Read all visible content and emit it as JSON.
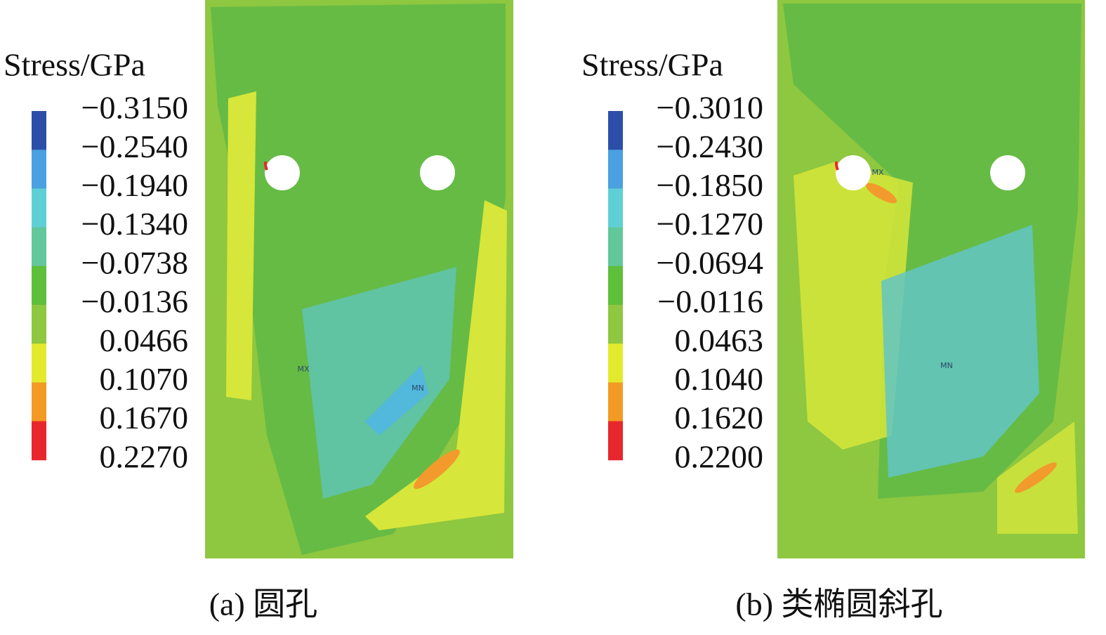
{
  "panels": [
    {
      "legend": {
        "title": "Stress/GPa",
        "labels": [
          "−0.3150",
          "−0.2540",
          "−0.1940",
          "−0.1340",
          "−0.0738",
          "−0.0136",
          "0.0466",
          "0.1070",
          "0.1670",
          "0.2270"
        ]
      },
      "markers": [
        "MX",
        "MN"
      ],
      "caption": "(a) 圆孔"
    },
    {
      "legend": {
        "title": "Stress/GPa",
        "labels": [
          "−0.3010",
          "−0.2430",
          "−0.1850",
          "−0.1270",
          "−0.0694",
          "−0.0116",
          "0.0463",
          "0.1040",
          "0.1620",
          "0.2200"
        ]
      },
      "markers": [
        "MX",
        "MN"
      ],
      "caption": "(b) 类椭圆斜孔"
    }
  ]
}
